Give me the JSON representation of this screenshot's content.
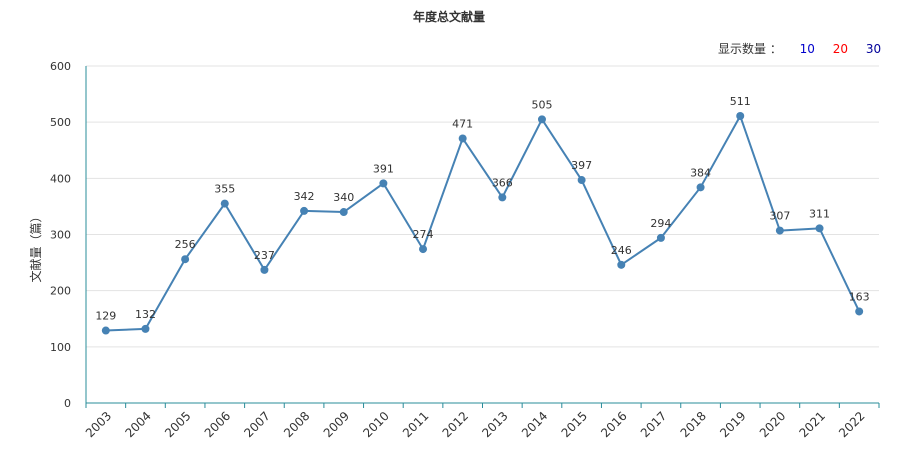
{
  "chart_data": {
    "type": "line",
    "title": "年度总文献量",
    "ylabel": "文献量（篇）",
    "xlabel": "",
    "ylim": [
      0,
      600
    ],
    "yticks": [
      0,
      100,
      200,
      300,
      400,
      500,
      600
    ],
    "grid": true,
    "categories": [
      "2003",
      "2004",
      "2005",
      "2006",
      "2007",
      "2008",
      "2009",
      "2010",
      "2011",
      "2012",
      "2013",
      "2014",
      "2015",
      "2016",
      "2017",
      "2018",
      "2019",
      "2020",
      "2021",
      "2022"
    ],
    "series": [
      {
        "values": [
          129,
          132,
          256,
          355,
          237,
          342,
          340,
          391,
          274,
          471,
          366,
          505,
          397,
          246,
          294,
          384,
          511,
          307,
          311,
          163
        ]
      }
    ],
    "line_color": "#4682b4"
  },
  "controls": {
    "label": "显示数量 ：",
    "options": [
      {
        "label": "10",
        "color": "#0000cc"
      },
      {
        "label": "20",
        "color": "#ff0000"
      },
      {
        "label": "30",
        "color": "#000099"
      }
    ]
  }
}
